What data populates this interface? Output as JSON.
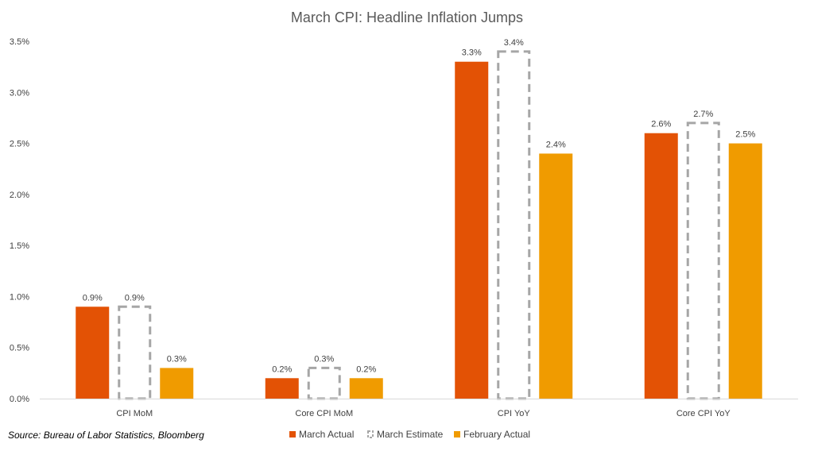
{
  "chart_data": {
    "type": "bar",
    "title": "March CPI: Headline Inflation Jumps",
    "categories": [
      "CPI MoM",
      "Core CPI MoM",
      "CPI YoY",
      "Core CPI YoY"
    ],
    "series": [
      {
        "name": "March Actual",
        "style": "solid",
        "color": "#E35205",
        "values": [
          0.9,
          0.2,
          3.3,
          2.6
        ],
        "labels": [
          "0.9%",
          "0.2%",
          "3.3%",
          "2.6%"
        ]
      },
      {
        "name": "March Estimate",
        "style": "dashed-outline",
        "color": "#A6A6A6",
        "values": [
          0.9,
          0.3,
          3.4,
          2.7
        ],
        "labels": [
          "0.9%",
          "0.3%",
          "3.4%",
          "2.7%"
        ]
      },
      {
        "name": "February Actual",
        "style": "solid",
        "color": "#F09B00",
        "values": [
          0.3,
          0.2,
          2.4,
          2.5
        ],
        "labels": [
          "0.3%",
          "0.2%",
          "2.4%",
          "2.5%"
        ]
      }
    ],
    "y_ticks": [
      0,
      0.5,
      1.0,
      1.5,
      2.0,
      2.5,
      3.0,
      3.5
    ],
    "y_tick_labels": [
      "0.0%",
      "0.5%",
      "1.0%",
      "1.5%",
      "2.0%",
      "2.5%",
      "3.0%",
      "3.5%"
    ],
    "ylim": [
      0,
      3.5
    ],
    "xlabel": "",
    "ylabel": "",
    "grid": false,
    "legend_position": "bottom-center",
    "axis_color": "#D9D9D9"
  },
  "footer": {
    "source": "Source: Bureau of Labor Statistics, Bloomberg"
  }
}
